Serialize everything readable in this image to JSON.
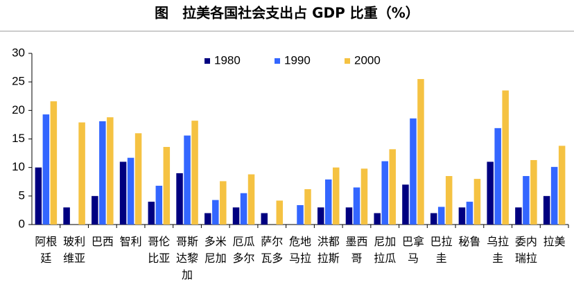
{
  "chart_data": {
    "type": "bar",
    "title": "图　拉美各国社会支出占 GDP 比重（%）",
    "categories": [
      "阿根廷",
      "玻利维亚",
      "巴西",
      "智利",
      "哥伦比亚",
      "哥斯达黎加",
      "多米尼加",
      "厄瓜多尔",
      "萨尔瓦多",
      "危地马拉",
      "洪都拉斯",
      "墨西哥",
      "尼加拉瓜",
      "巴拿马",
      "巴拉圭",
      "秘鲁",
      "乌拉圭",
      "委内瑞拉",
      "拉美"
    ],
    "series": [
      {
        "name": "1980",
        "color": "#000080",
        "values": [
          10,
          3,
          5,
          11,
          4,
          9,
          2,
          3,
          2,
          null,
          3,
          3,
          2,
          7,
          2,
          3,
          11,
          3,
          5
        ]
      },
      {
        "name": "1990",
        "color": "#3366ff",
        "values": [
          19.3,
          null,
          18.1,
          11.7,
          6.8,
          15.6,
          4.3,
          5.5,
          null,
          3.4,
          7.9,
          6.5,
          11.1,
          18.6,
          3.1,
          4,
          16.9,
          8.5,
          10.1
        ]
      },
      {
        "name": "2000",
        "color": "#f5c242",
        "values": [
          21.6,
          17.9,
          18.8,
          16,
          13.6,
          18.2,
          7.6,
          8.8,
          4.2,
          6.2,
          10,
          9.8,
          13.2,
          25.5,
          8.5,
          8,
          23.5,
          11.3,
          13.8
        ]
      }
    ],
    "ylim": [
      0,
      30
    ],
    "yticks": [
      0,
      5,
      10,
      15,
      20,
      25,
      30
    ],
    "legend": "top"
  }
}
